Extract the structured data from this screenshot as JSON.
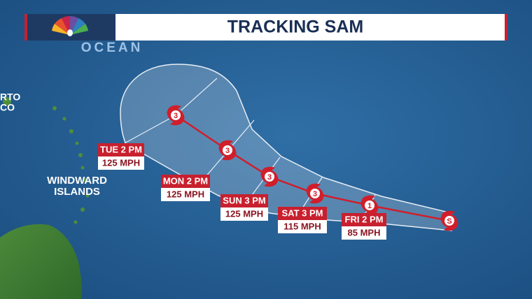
{
  "header": {
    "title": "TRACKING SAM"
  },
  "map_labels": {
    "ocean": "OCEAN",
    "puerto_rico": [
      "RTO",
      "CO"
    ],
    "windward_islands": [
      "WINDWARD",
      "ISLANDS"
    ]
  },
  "track": [
    {
      "time": "TUE 2 PM",
      "wind": "125 MPH",
      "category": "3"
    },
    {
      "time": "MON 2 PM",
      "wind": "125 MPH",
      "category": "3"
    },
    {
      "time": "SUN 3 PM",
      "wind": "125 MPH",
      "category": "3"
    },
    {
      "time": "SAT 3 PM",
      "wind": "115 MPH",
      "category": "3"
    },
    {
      "time": "FRI 2 PM",
      "wind": "85 MPH",
      "category": "1"
    },
    {
      "time": null,
      "wind": null,
      "category": "S"
    }
  ]
}
